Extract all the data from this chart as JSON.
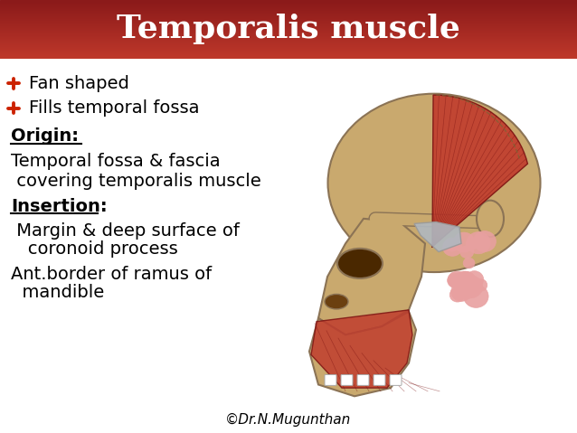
{
  "title": "Temporalis muscle",
  "title_bg_top": "#c0392b",
  "title_bg_bottom": "#8b1a1a",
  "title_text_color": "#ffffff",
  "title_fontsize": 26,
  "bg_color": "#ffffff",
  "text_fontsize": 14,
  "label_fontsize": 14,
  "bullet_symbol": "✚",
  "bullets": [
    "Fan shaped",
    "Fills temporal fossa"
  ],
  "origin_label": "Origin:",
  "origin_text1": "Temporal fossa & fascia",
  "origin_text2": " covering temporalis muscle",
  "insertion_label": "Insertion:",
  "insertion_text1": " Margin & deep surface of",
  "insertion_text2": "   coronoid process",
  "insertion_text3": "Ant.border of ramus of",
  "insertion_text4": "  mandible",
  "footer": "©Dr.N.Mugunthan",
  "footer_fontsize": 11,
  "skull_color": "#c9a96e",
  "skull_edge": "#8B7355",
  "muscle_color": "#c0392b",
  "tendon_color": "#b0b8c0",
  "cheek_bump_color": "#e8a0a0"
}
